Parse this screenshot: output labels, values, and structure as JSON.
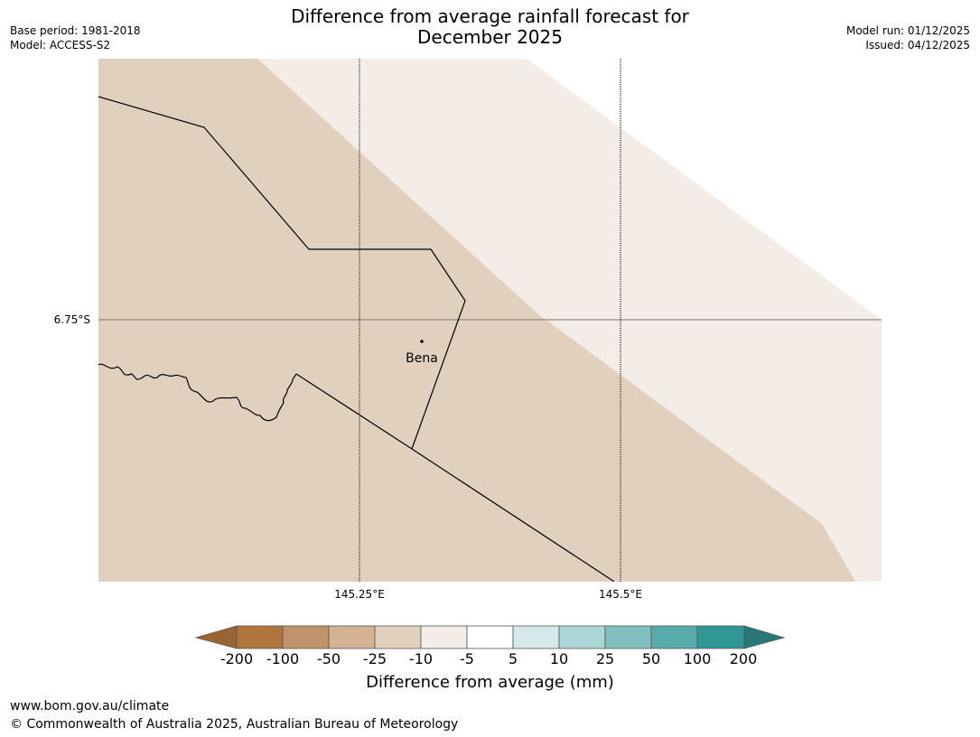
{
  "header": {
    "title_line1": "Difference from average rainfall forecast for",
    "title_line2": "December 2025",
    "base_period": "Base period: 1981-2018",
    "model": "Model: ACCESS-S2",
    "model_run": "Model run: 01/12/2025",
    "issued": "Issued: 04/12/2025"
  },
  "map": {
    "lat_label": "6.75°S",
    "lon_labels": [
      "145.25°E",
      "145.5°E"
    ],
    "place_name": "Bena",
    "fill_colors": {
      "neg_25_to_neg_10": "#e2d0bf",
      "neg_10_to_neg_5": "#f4ece6"
    }
  },
  "legend": {
    "title": "Difference from average (mm)",
    "ticks": [
      "-200",
      "-100",
      "-50",
      "-25",
      "-10",
      "-5",
      "5",
      "10",
      "25",
      "50",
      "100",
      "200"
    ],
    "colors": [
      "#9b6533",
      "#b0753d",
      "#c0936a",
      "#d4b293",
      "#e2d0bf",
      "#f4ece6",
      "#ffffff",
      "#d6e9ea",
      "#acd5d6",
      "#82c0bf",
      "#58abab",
      "#2f9897",
      "#287877"
    ]
  },
  "footer": {
    "url": "www.bom.gov.au/climate",
    "copyright": "© Commonwealth of Australia 2025, Australian Bureau of Meteorology"
  }
}
